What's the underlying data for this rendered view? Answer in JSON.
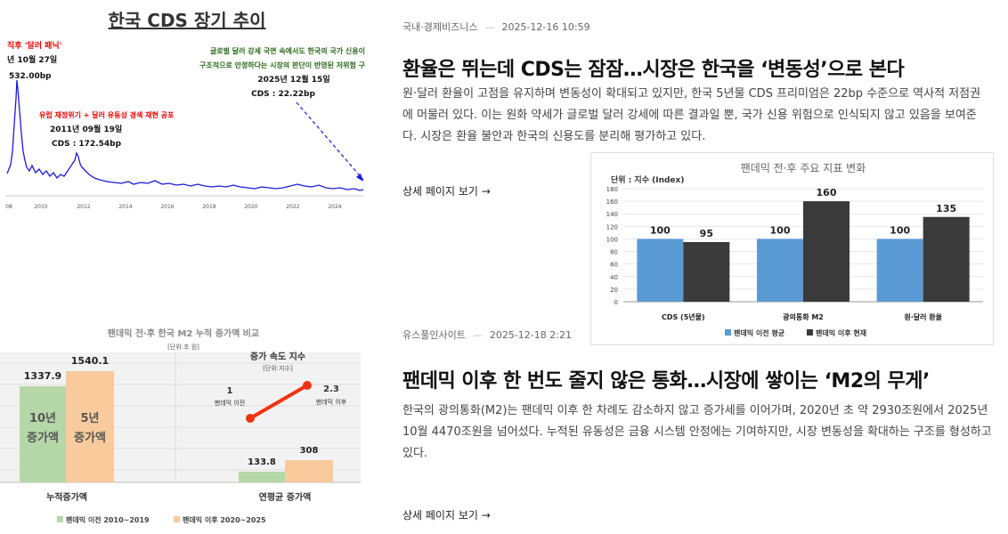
{
  "cds_chart": {
    "title": "한국 CDS 장기 추이",
    "note_top_left": "직후 '달러 패닉'",
    "peak_date": "년 10월 27일",
    "peak_value": "532.00bp",
    "note_top_right_1": "글로벌 달러 강세 국면 속에서도 한국의 국가 신용이",
    "note_top_right_2": "구조적으로 안정하다는 시장의 판단이 반영된 저위험 구",
    "current_date": "2025년 12월 15일",
    "current_value": "CDS : 22.22bp",
    "note_mid": "유럽 재정위기 + 달러 유동성 경색 재현 공포",
    "mid_date": "2011년 09월 19일",
    "mid_value": "CDS : 172.54bp",
    "x_ticks": [
      "08",
      "2010",
      "2012",
      "2014",
      "2016",
      "2018",
      "2020",
      "2022",
      "2024"
    ],
    "accent_color": "#1a1adb"
  },
  "m2_chart": {
    "title": "팬데믹 전·후 한국 M2 누적 증가액 비교",
    "unit": "[단위:조 원]",
    "bars": [
      {
        "value_label": "1337.9",
        "inner_1": "10년",
        "inner_2": "증가액",
        "color": "#b6d7a8"
      },
      {
        "value_label": "1540.1",
        "inner_1": "5년",
        "inner_2": "증가액",
        "color": "#f9cb9c"
      }
    ],
    "bottom_bars": [
      {
        "value_label": "133.8",
        "color": "#b6d7a8"
      },
      {
        "value_label": "308",
        "color": "#f9cb9c"
      }
    ],
    "speed_title": "증가 속도 지수",
    "speed_unit": "[단위:지수]",
    "speed_before_value": "1",
    "speed_before_label": "팬데믹 이전",
    "speed_after_value": "2.3",
    "speed_after_label": "팬데믹 이후",
    "cat_left": "누적증가액",
    "cat_right": "연평균 증가액",
    "legend_before": "팬데믹 이전 2010~2019",
    "legend_after": "팬데믹 이후 2020~2025",
    "line_color": "#ee3311"
  },
  "articles": [
    {
      "source": "국내·경제비즈니스",
      "date": "2025-12-16 10:59",
      "headline": "환율은 뛰는데 CDS는 잠잠…시장은 한국을 ‘변동성’으로 본다",
      "summary": "원·달러 환율이 고점을 유지하며 변동성이 확대되고 있지만, 한국 5년물 CDS 프리미엄은 22bp 수준으로 역사적 저점권에 머물러 있다. 이는 원화 약세가 글로벌 달러 강세에 따른 결과일 뿐, 국가 신용 위험으로 인식되지 않고 있음을 보여준다. 시장은 환율 불안과 한국의 신용도를 분리해 평가하고 있다.",
      "more": "상세 페이지 보기 →"
    },
    {
      "source": "유스풀인사이트",
      "date": "2025-12-18 2:21",
      "headline": "팬데믹 이후 한 번도 줄지 않은 통화…시장에 쌓이는 ‘M2의 무게’",
      "summary": "한국의 광의통화(M2)는 팬데믹 이후 한 차례도 감소하지 않고 증가세를 이어가며, 2020년 초 약 2930조원에서 2025년 10월 4470조원을 넘어섰다. 누적된 유동성은 금융 시스템 안정에는 기여하지만, 시장 변동성을 확대하는 구조를 형성하고 있다.",
      "more": "상세 페이지 보기 →"
    }
  ],
  "chart_data": {
    "type": "bar",
    "title": "팬데믹 전·후 주요 지표 변화",
    "unit_label": "단위 : 지수 (Index)",
    "categories": [
      "CDS (5년물)",
      "광의통화 M2",
      "원·달러 환율"
    ],
    "series": [
      {
        "name": "팬데믹 이전 평균",
        "values": [
          100,
          100,
          100
        ],
        "color": "#5b9bd5"
      },
      {
        "name": "팬데믹 이후 현재",
        "values": [
          95,
          160,
          135
        ],
        "color": "#3a3a3a"
      }
    ],
    "ylim": [
      0,
      180
    ],
    "yticks": [
      "0",
      "20",
      "40",
      "60",
      "80",
      "100",
      "120",
      "140",
      "160",
      "180"
    ],
    "grid": true,
    "legend": "bottom"
  }
}
